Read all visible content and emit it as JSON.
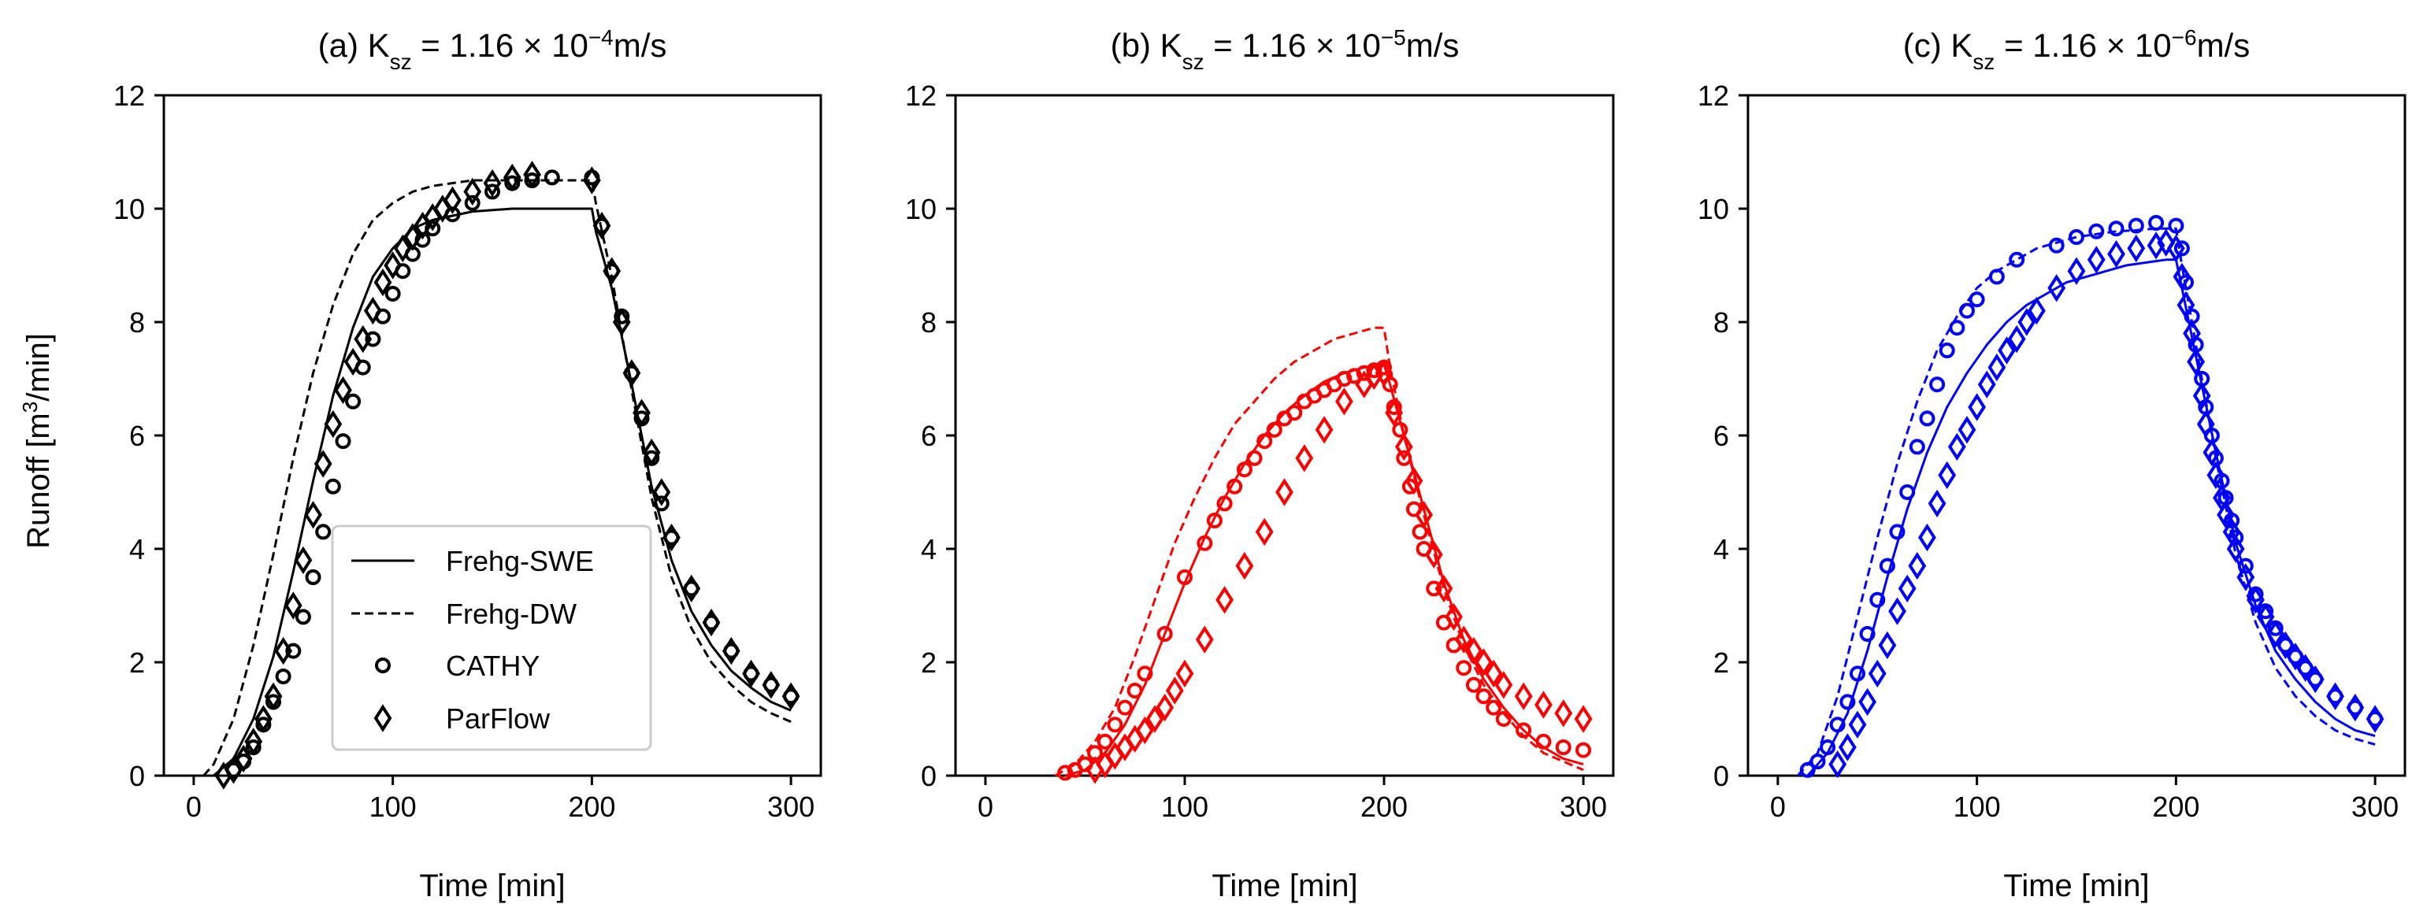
{
  "figure": {
    "ylabel_prefix": "Runoff [m",
    "ylabel_sup": "3",
    "ylabel_suffix": "/min]",
    "xlabel": "Time [min]"
  },
  "legend": {
    "swe": "Frehg-SWE",
    "dw": "Frehg-DW",
    "cathy": "CATHY",
    "parflow": "ParFlow"
  },
  "chart_data": [
    {
      "type": "line",
      "panel": "(a)",
      "title_prefix": "(a) K",
      "title_sub": "sz",
      "title_eq": " = 1.16 × 10",
      "title_exp": "−4",
      "title_unit": "m/s",
      "color": "#000000",
      "xlim": [
        -15,
        315
      ],
      "ylim": [
        0,
        12
      ],
      "xticks": [
        "0",
        "100",
        "200",
        "300"
      ],
      "yticks": [
        "0",
        "2",
        "4",
        "6",
        "8",
        "10",
        "12"
      ],
      "series": [
        {
          "name": "Frehg-SWE",
          "style": "solid",
          "x": [
            10,
            20,
            30,
            40,
            50,
            60,
            70,
            80,
            90,
            100,
            110,
            120,
            140,
            160,
            180,
            200,
            202,
            210,
            220,
            230,
            240,
            250,
            260,
            270,
            280,
            290,
            300
          ],
          "y": [
            0,
            0.3,
            1.0,
            2.1,
            3.6,
            5.2,
            6.7,
            7.9,
            8.8,
            9.3,
            9.65,
            9.8,
            9.95,
            10.0,
            10.0,
            10.0,
            9.6,
            8.6,
            6.9,
            5.1,
            3.8,
            2.9,
            2.3,
            1.85,
            1.55,
            1.3,
            1.15
          ]
        },
        {
          "name": "Frehg-DW",
          "style": "dashed",
          "x": [
            5,
            10,
            20,
            30,
            40,
            50,
            60,
            70,
            80,
            90,
            100,
            110,
            120,
            140,
            160,
            180,
            200,
            202,
            210,
            220,
            230,
            240,
            250,
            260,
            270,
            280,
            290,
            300
          ],
          "y": [
            0,
            0.2,
            1.0,
            2.3,
            3.9,
            5.6,
            7.1,
            8.3,
            9.2,
            9.8,
            10.1,
            10.3,
            10.4,
            10.5,
            10.5,
            10.5,
            10.5,
            10.1,
            8.8,
            6.8,
            4.9,
            3.5,
            2.6,
            2.0,
            1.6,
            1.3,
            1.1,
            0.95
          ]
        },
        {
          "name": "CATHY",
          "marker": "circle",
          "x": [
            20,
            25,
            30,
            35,
            40,
            45,
            50,
            55,
            60,
            65,
            70,
            75,
            80,
            85,
            90,
            95,
            100,
            105,
            110,
            115,
            120,
            130,
            140,
            150,
            160,
            170,
            180,
            200,
            205,
            210,
            215,
            220,
            225,
            230,
            235,
            240,
            250,
            260,
            270,
            280,
            290,
            300
          ],
          "y": [
            0.1,
            0.25,
            0.5,
            0.9,
            1.3,
            1.75,
            2.2,
            2.8,
            3.5,
            4.3,
            5.1,
            5.9,
            6.6,
            7.2,
            7.7,
            8.1,
            8.5,
            8.9,
            9.2,
            9.45,
            9.65,
            9.9,
            10.1,
            10.3,
            10.45,
            10.5,
            10.55,
            10.55,
            9.7,
            8.9,
            8.1,
            7.1,
            6.3,
            5.6,
            4.8,
            4.2,
            3.3,
            2.7,
            2.2,
            1.8,
            1.6,
            1.4
          ]
        },
        {
          "name": "ParFlow",
          "marker": "diamond",
          "x": [
            15,
            20,
            25,
            30,
            35,
            40,
            45,
            50,
            55,
            60,
            65,
            70,
            75,
            80,
            85,
            90,
            95,
            100,
            105,
            110,
            115,
            120,
            125,
            130,
            140,
            150,
            160,
            170,
            200,
            205,
            210,
            215,
            220,
            225,
            230,
            235,
            240,
            250,
            260,
            270,
            280,
            290,
            300
          ],
          "y": [
            0,
            0.1,
            0.3,
            0.6,
            1.0,
            1.4,
            2.2,
            3.0,
            3.8,
            4.6,
            5.5,
            6.2,
            6.8,
            7.3,
            7.7,
            8.2,
            8.7,
            9.0,
            9.3,
            9.5,
            9.7,
            9.85,
            10.0,
            10.15,
            10.3,
            10.45,
            10.55,
            10.6,
            10.5,
            9.7,
            8.9,
            8.0,
            7.1,
            6.4,
            5.7,
            5.0,
            4.2,
            3.3,
            2.7,
            2.2,
            1.8,
            1.6,
            1.4
          ]
        }
      ]
    },
    {
      "type": "line",
      "panel": "(b)",
      "title_prefix": "(b) K",
      "title_sub": "sz",
      "title_eq": " = 1.16 × 10",
      "title_exp": "−5",
      "title_unit": "m/s",
      "color": "#ff0000",
      "xlim": [
        -15,
        315
      ],
      "ylim": [
        0,
        12
      ],
      "xticks": [
        "0",
        "100",
        "200",
        "300"
      ],
      "yticks": [
        "0",
        "2",
        "4",
        "6",
        "8",
        "10",
        "12"
      ],
      "series": [
        {
          "name": "Frehg-SWE",
          "style": "solid",
          "x": [
            40,
            50,
            60,
            70,
            80,
            90,
            100,
            110,
            120,
            130,
            140,
            150,
            160,
            170,
            180,
            190,
            200,
            203,
            210,
            220,
            230,
            240,
            250,
            260,
            270,
            280,
            290,
            300
          ],
          "y": [
            0,
            0.1,
            0.4,
            0.9,
            1.6,
            2.5,
            3.4,
            4.2,
            4.9,
            5.5,
            6.0,
            6.4,
            6.7,
            6.95,
            7.1,
            7.2,
            7.25,
            6.9,
            6.0,
            4.7,
            3.4,
            2.4,
            1.7,
            1.2,
            0.8,
            0.5,
            0.3,
            0.2
          ]
        },
        {
          "name": "Frehg-DW",
          "style": "dashed",
          "x": [
            35,
            45,
            55,
            65,
            75,
            85,
            95,
            105,
            115,
            125,
            135,
            145,
            155,
            165,
            175,
            185,
            195,
            200,
            203,
            210,
            220,
            230,
            240,
            250,
            260,
            270,
            280,
            290,
            300
          ],
          "y": [
            0,
            0.2,
            0.6,
            1.2,
            2.1,
            3.1,
            4.1,
            4.9,
            5.6,
            6.2,
            6.6,
            7.0,
            7.3,
            7.5,
            7.7,
            7.8,
            7.9,
            7.9,
            7.2,
            6.0,
            4.6,
            3.3,
            2.3,
            1.6,
            1.1,
            0.7,
            0.4,
            0.25,
            0.1
          ]
        },
        {
          "name": "CATHY",
          "marker": "circle",
          "x": [
            40,
            45,
            50,
            55,
            60,
            65,
            70,
            75,
            80,
            90,
            100,
            110,
            115,
            120,
            125,
            130,
            135,
            140,
            145,
            150,
            155,
            160,
            165,
            170,
            175,
            180,
            185,
            190,
            195,
            200,
            203,
            205,
            208,
            210,
            213,
            215,
            218,
            220,
            225,
            230,
            235,
            240,
            245,
            250,
            255,
            260,
            270,
            280,
            290,
            300
          ],
          "y": [
            0.05,
            0.1,
            0.2,
            0.4,
            0.6,
            0.9,
            1.2,
            1.5,
            1.8,
            2.5,
            3.5,
            4.1,
            4.5,
            4.8,
            5.1,
            5.4,
            5.6,
            5.9,
            6.1,
            6.3,
            6.4,
            6.6,
            6.7,
            6.8,
            6.9,
            7.0,
            7.05,
            7.1,
            7.15,
            7.2,
            6.9,
            6.5,
            6.1,
            5.6,
            5.1,
            4.7,
            4.3,
            4.0,
            3.3,
            2.7,
            2.3,
            1.9,
            1.6,
            1.4,
            1.2,
            1.0,
            0.8,
            0.6,
            0.5,
            0.45
          ]
        },
        {
          "name": "ParFlow",
          "marker": "diamond",
          "x": [
            55,
            60,
            65,
            70,
            75,
            80,
            85,
            90,
            95,
            100,
            110,
            120,
            130,
            140,
            150,
            160,
            170,
            180,
            190,
            195,
            200,
            205,
            210,
            215,
            220,
            225,
            230,
            235,
            240,
            245,
            250,
            255,
            260,
            270,
            280,
            290,
            300
          ],
          "y": [
            0.1,
            0.2,
            0.35,
            0.5,
            0.65,
            0.8,
            1.0,
            1.2,
            1.5,
            1.8,
            2.4,
            3.1,
            3.7,
            4.3,
            5.0,
            5.6,
            6.1,
            6.6,
            6.9,
            7.05,
            7.1,
            6.4,
            5.8,
            5.2,
            4.6,
            3.9,
            3.3,
            2.8,
            2.4,
            2.2,
            2.0,
            1.8,
            1.6,
            1.4,
            1.25,
            1.1,
            1.0
          ]
        }
      ]
    },
    {
      "type": "line",
      "panel": "(c)",
      "title_prefix": "(c) K",
      "title_sub": "sz",
      "title_eq": " = 1.16 × 10",
      "title_exp": "−6",
      "title_unit": "m/s",
      "color": "#0000ff",
      "xlim": [
        -15,
        315
      ],
      "ylim": [
        0,
        12
      ],
      "xticks": [
        "0",
        "100",
        "200",
        "300"
      ],
      "yticks": [
        "0",
        "2",
        "4",
        "6",
        "8",
        "10",
        "12"
      ],
      "series": [
        {
          "name": "Frehg-SWE",
          "style": "solid",
          "x": [
            15,
            25,
            35,
            45,
            55,
            65,
            75,
            85,
            95,
            105,
            115,
            125,
            135,
            145,
            155,
            165,
            175,
            185,
            195,
            200,
            203,
            210,
            220,
            230,
            240,
            250,
            260,
            270,
            280,
            290,
            300
          ],
          "y": [
            0,
            0.4,
            1.1,
            2.2,
            3.5,
            4.7,
            5.7,
            6.5,
            7.1,
            7.6,
            8.0,
            8.3,
            8.5,
            8.7,
            8.8,
            8.9,
            9.0,
            9.05,
            9.1,
            9.1,
            8.6,
            7.4,
            5.7,
            4.1,
            3.0,
            2.2,
            1.7,
            1.3,
            1.0,
            0.8,
            0.7
          ]
        },
        {
          "name": "Frehg-DW",
          "style": "dashed",
          "x": [
            10,
            20,
            30,
            40,
            50,
            60,
            70,
            80,
            90,
            100,
            110,
            120,
            130,
            140,
            150,
            160,
            170,
            180,
            190,
            200,
            203,
            210,
            220,
            230,
            240,
            250,
            260,
            270,
            280,
            290,
            300
          ],
          "y": [
            0,
            0.4,
            1.4,
            2.8,
            4.2,
            5.5,
            6.6,
            7.5,
            8.1,
            8.6,
            8.9,
            9.1,
            9.3,
            9.4,
            9.5,
            9.55,
            9.6,
            9.62,
            9.65,
            9.65,
            9.0,
            7.6,
            5.6,
            3.9,
            2.7,
            1.9,
            1.4,
            1.05,
            0.8,
            0.65,
            0.55
          ]
        },
        {
          "name": "CATHY",
          "marker": "circle",
          "x": [
            15,
            20,
            25,
            30,
            35,
            40,
            45,
            50,
            55,
            60,
            65,
            70,
            75,
            80,
            85,
            90,
            95,
            100,
            110,
            120,
            140,
            150,
            160,
            170,
            180,
            190,
            200,
            203,
            205,
            208,
            210,
            213,
            215,
            218,
            220,
            223,
            225,
            228,
            230,
            235,
            240,
            245,
            250,
            255,
            260,
            265,
            270,
            280,
            290,
            300
          ],
          "y": [
            0.1,
            0.25,
            0.5,
            0.9,
            1.3,
            1.8,
            2.5,
            3.1,
            3.7,
            4.3,
            5.0,
            5.8,
            6.3,
            6.9,
            7.5,
            7.9,
            8.2,
            8.4,
            8.8,
            9.1,
            9.35,
            9.5,
            9.6,
            9.65,
            9.7,
            9.75,
            9.7,
            9.3,
            8.7,
            8.1,
            7.6,
            7.0,
            6.5,
            6.0,
            5.6,
            5.2,
            4.9,
            4.5,
            4.2,
            3.7,
            3.2,
            2.9,
            2.6,
            2.3,
            2.1,
            1.9,
            1.7,
            1.4,
            1.2,
            1.0
          ]
        },
        {
          "name": "ParFlow",
          "marker": "diamond",
          "x": [
            30,
            35,
            40,
            45,
            50,
            55,
            60,
            65,
            70,
            75,
            80,
            85,
            90,
            95,
            100,
            105,
            110,
            115,
            120,
            125,
            130,
            140,
            150,
            160,
            170,
            180,
            190,
            195,
            200,
            203,
            205,
            208,
            210,
            213,
            215,
            218,
            220,
            223,
            225,
            228,
            230,
            235,
            240,
            245,
            250,
            255,
            260,
            265,
            270,
            280,
            290,
            300
          ],
          "y": [
            0.2,
            0.5,
            0.9,
            1.3,
            1.8,
            2.3,
            2.9,
            3.3,
            3.7,
            4.2,
            4.8,
            5.3,
            5.8,
            6.1,
            6.5,
            6.9,
            7.2,
            7.5,
            7.7,
            8.0,
            8.2,
            8.6,
            8.9,
            9.1,
            9.2,
            9.3,
            9.35,
            9.4,
            9.3,
            8.8,
            8.3,
            7.8,
            7.3,
            6.7,
            6.2,
            5.7,
            5.3,
            4.9,
            4.6,
            4.3,
            4.0,
            3.5,
            3.1,
            2.8,
            2.5,
            2.3,
            2.1,
            1.9,
            1.7,
            1.4,
            1.2,
            1.0
          ]
        }
      ]
    }
  ]
}
